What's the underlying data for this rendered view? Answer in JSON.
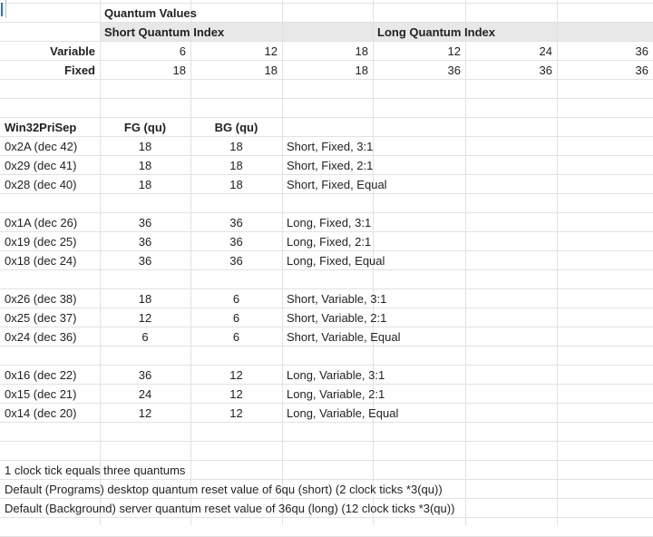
{
  "header": {
    "title": "Quantum Values",
    "short_index": "Short Quantum Index",
    "long_index": "Long Quantum Index"
  },
  "quantum_rows": [
    {
      "label": "Variable",
      "values": [
        "6",
        "12",
        "18",
        "12",
        "24",
        "36"
      ]
    },
    {
      "label": "Fixed",
      "values": [
        "18",
        "18",
        "18",
        "36",
        "36",
        "36"
      ]
    }
  ],
  "table": {
    "col1": "Win32PriSep",
    "col2": "FG (qu)",
    "col3": "BG (qu)"
  },
  "groups": [
    [
      {
        "code": "0x2A (dec 42)",
        "fg": "18",
        "bg": "18",
        "desc": "Short, Fixed, 3:1"
      },
      {
        "code": "0x29 (dec 41)",
        "fg": "18",
        "bg": "18",
        "desc": "Short, Fixed, 2:1"
      },
      {
        "code": "0x28 (dec 40)",
        "fg": "18",
        "bg": "18",
        "desc": "Short, Fixed, Equal"
      }
    ],
    [
      {
        "code": "0x1A (dec 26)",
        "fg": "36",
        "bg": "36",
        "desc": "Long, Fixed, 3:1"
      },
      {
        "code": "0x19 (dec 25)",
        "fg": "36",
        "bg": "36",
        "desc": "Long, Fixed, 2:1"
      },
      {
        "code": "0x18 (dec 24)",
        "fg": "36",
        "bg": "36",
        "desc": "Long, Fixed, Equal"
      }
    ],
    [
      {
        "code": "0x26 (dec 38)",
        "fg": "18",
        "bg": "6",
        "desc": "Short, Variable, 3:1"
      },
      {
        "code": "0x25 (dec 37)",
        "fg": "12",
        "bg": "6",
        "desc": "Short, Variable, 2:1"
      },
      {
        "code": "0x24 (dec 36)",
        "fg": "6",
        "bg": "6",
        "desc": "Short, Variable, Equal"
      }
    ],
    [
      {
        "code": "0x16 (dec 22)",
        "fg": "36",
        "bg": "12",
        "desc": "Long, Variable, 3:1"
      },
      {
        "code": "0x15 (dec 21)",
        "fg": "24",
        "bg": "12",
        "desc": "Long, Variable, 2:1"
      },
      {
        "code": "0x14 (dec 20)",
        "fg": "12",
        "bg": "12",
        "desc": "Long, Variable, Equal"
      }
    ]
  ],
  "notes": [
    "1 clock tick equals three quantums",
    "Default (Programs) desktop quantum reset value of 6qu (short) (2 clock ticks *3(qu))",
    "Default (Background) server quantum reset value of 36qu (long)  (12 clock ticks *3(qu))"
  ]
}
